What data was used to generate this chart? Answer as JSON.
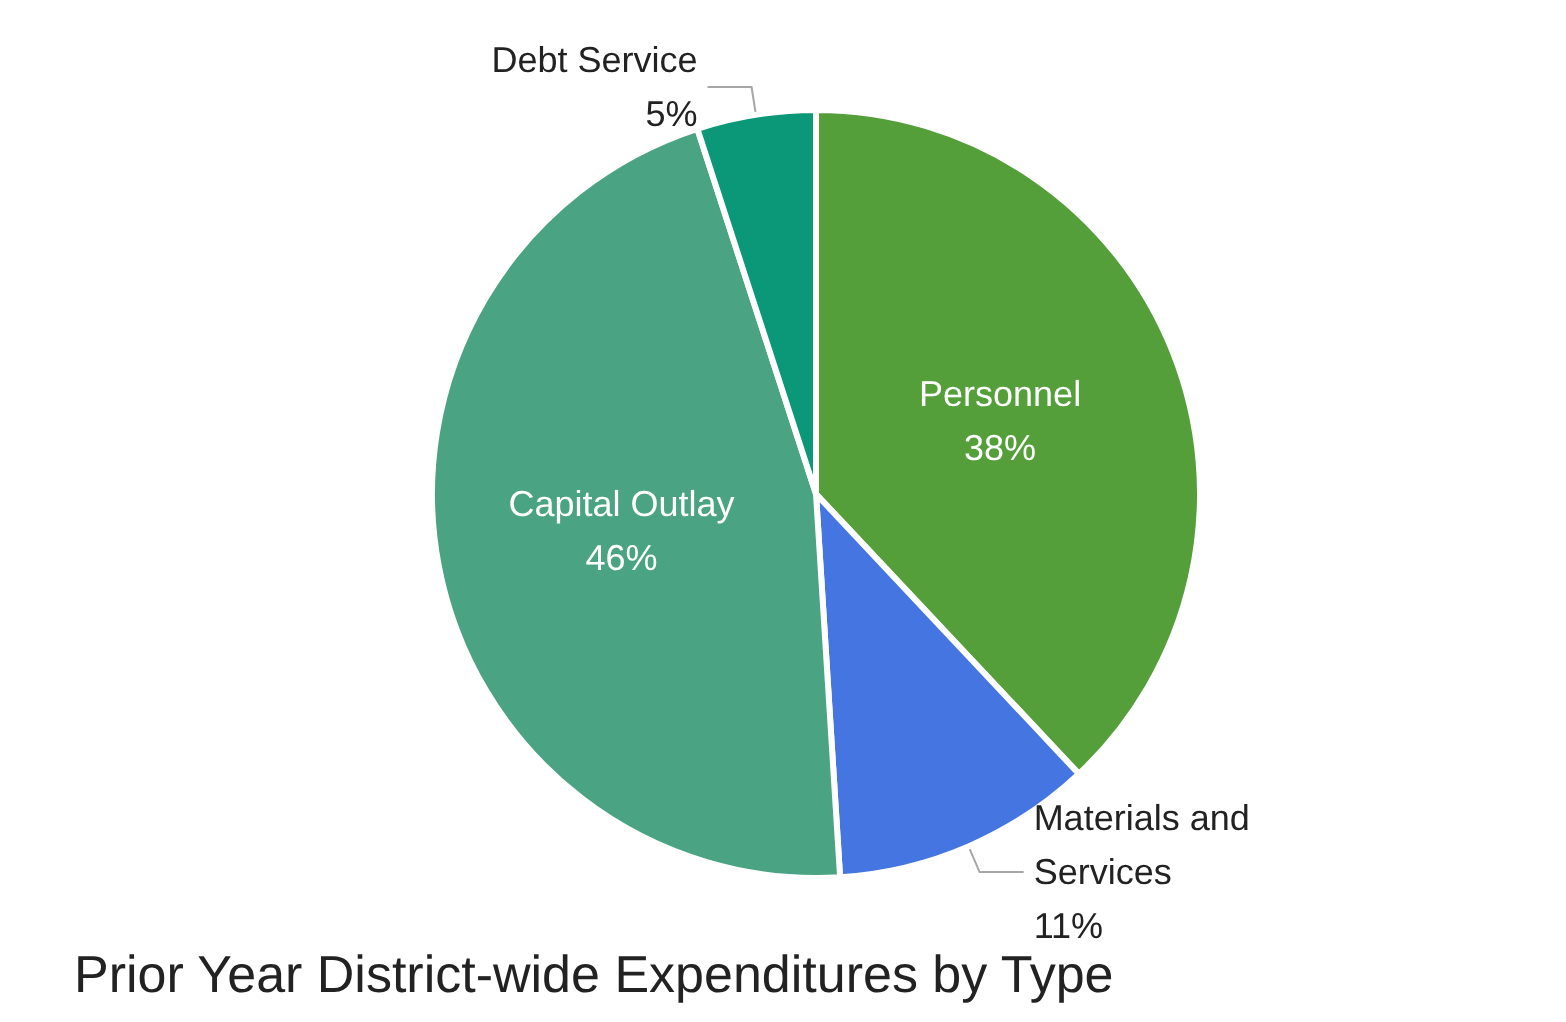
{
  "chart_data": {
    "type": "pie",
    "title": "Prior Year District-wide Expenditures by Type",
    "categories": [
      "Personnel",
      "Materials and Services",
      "Capital Outlay",
      "Debt Service"
    ],
    "values": [
      38,
      11,
      46,
      5
    ],
    "colors": [
      "#559f3b",
      "#4475e0",
      "#4aa383",
      "#0a9878"
    ],
    "value_labels": [
      "38%",
      "11%",
      "46%",
      "5%"
    ],
    "legend": false
  }
}
